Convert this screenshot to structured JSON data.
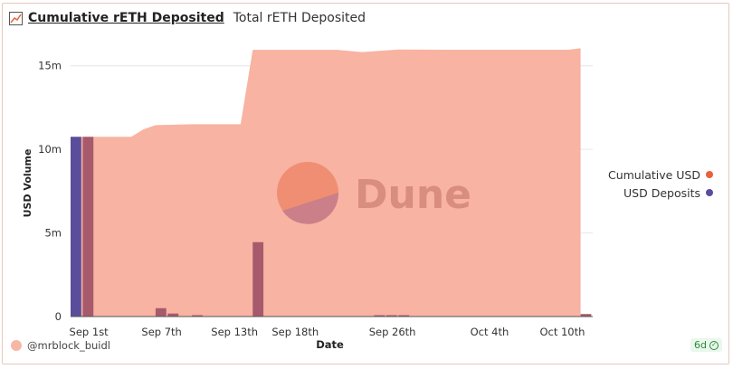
{
  "tabs": {
    "active_label": "Cumulative rETH Deposited",
    "inactive_label": "Total rETH Deposited"
  },
  "legend": {
    "items": [
      {
        "label": "Cumulative USD",
        "color": "#e8613c"
      },
      {
        "label": "USD Deposits",
        "color": "#5a4e9c"
      }
    ]
  },
  "watermark": "Dune",
  "footer": {
    "username": "@mrblock_buidl",
    "age": "6d"
  },
  "colors": {
    "area_fill": "#f8b3a2",
    "deposit_bar": "#5a4e9c",
    "overlap_bar": "#a65a6c"
  },
  "chart_data": {
    "type": "area",
    "xlabel": "Date",
    "ylabel": "USD Volume",
    "ylim": [
      0,
      16500000
    ],
    "y_ticks": [
      {
        "value": 0,
        "label": "0"
      },
      {
        "value": 5000000,
        "label": "5m"
      },
      {
        "value": 10000000,
        "label": "10m"
      },
      {
        "value": 15000000,
        "label": "15m"
      }
    ],
    "x_start": "2022-08-31",
    "x_end": "2022-10-13",
    "x_ticks": [
      {
        "date": "2022-09-01",
        "label": "Sep 1st"
      },
      {
        "date": "2022-09-07",
        "label": "Sep 7th"
      },
      {
        "date": "2022-09-13",
        "label": "Sep 13th"
      },
      {
        "date": "2022-09-18",
        "label": "Sep 18th"
      },
      {
        "date": "2022-09-26",
        "label": "Sep 26th"
      },
      {
        "date": "2022-10-04",
        "label": "Oct 4th"
      },
      {
        "date": "2022-10-10",
        "label": "Oct 10th"
      }
    ],
    "series": [
      {
        "name": "Cumulative USD",
        "points": [
          {
            "date": "2022-08-31",
            "value": 10750000
          },
          {
            "date": "2022-09-01",
            "value": 10750000
          },
          {
            "date": "2022-09-05",
            "value": 10750000
          },
          {
            "date": "2022-09-06",
            "value": 11200000
          },
          {
            "date": "2022-09-07",
            "value": 11450000
          },
          {
            "date": "2022-09-10",
            "value": 11500000
          },
          {
            "date": "2022-09-13",
            "value": 11500000
          },
          {
            "date": "2022-09-14",
            "value": 11500000
          },
          {
            "date": "2022-09-15",
            "value": 15950000
          },
          {
            "date": "2022-09-18",
            "value": 15950000
          },
          {
            "date": "2022-09-22",
            "value": 15950000
          },
          {
            "date": "2022-09-24",
            "value": 15820000
          },
          {
            "date": "2022-09-27",
            "value": 15970000
          },
          {
            "date": "2022-10-01",
            "value": 15960000
          },
          {
            "date": "2022-10-05",
            "value": 15960000
          },
          {
            "date": "2022-10-09",
            "value": 15960000
          },
          {
            "date": "2022-10-11",
            "value": 15960000
          },
          {
            "date": "2022-10-12",
            "value": 16050000
          }
        ]
      },
      {
        "name": "USD Deposits",
        "bars": [
          {
            "date": "2022-08-31",
            "value": 10750000
          },
          {
            "date": "2022-09-01",
            "value": 10750000
          },
          {
            "date": "2022-09-07",
            "value": 500000
          },
          {
            "date": "2022-09-08",
            "value": 180000
          },
          {
            "date": "2022-09-10",
            "value": 40000
          },
          {
            "date": "2022-09-15",
            "value": 4450000
          },
          {
            "date": "2022-09-25",
            "value": 30000
          },
          {
            "date": "2022-09-26",
            "value": 60000
          },
          {
            "date": "2022-09-27",
            "value": 30000
          },
          {
            "date": "2022-10-12",
            "value": 150000
          }
        ]
      }
    ]
  }
}
